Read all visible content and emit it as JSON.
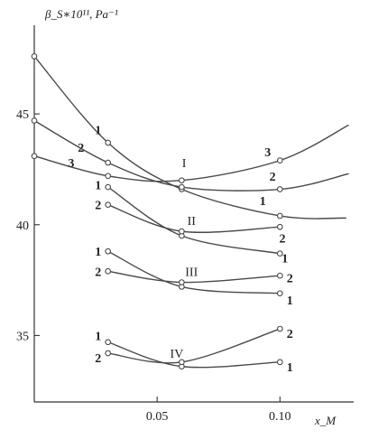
{
  "chart_data": {
    "type": "line",
    "title": "",
    "ylabel": "β_S∗10¹¹, Pa⁻¹",
    "xlabel": "x_M",
    "xlim": [
      0.0,
      0.13
    ],
    "ylim": [
      32.0,
      49.0
    ],
    "x_ticks": [
      {
        "value": 0.05,
        "label": "0.05"
      },
      {
        "value": 0.1,
        "label": "0.10"
      }
    ],
    "y_ticks": [
      {
        "value": 35,
        "label": "35"
      },
      {
        "value": 40,
        "label": "40"
      },
      {
        "value": 45,
        "label": "45"
      }
    ],
    "grid": false,
    "groups": [
      {
        "name": "I",
        "label_point": {
          "x": 0.061,
          "y": 42.8
        },
        "series": [
          {
            "name": "1",
            "points": [
              [
                0.0,
                47.6
              ],
              [
                0.03,
                43.7
              ],
              [
                0.06,
                41.6
              ],
              [
                0.1,
                40.4
              ]
            ],
            "curve_end": [
              0.127,
              40.3
            ],
            "label_point": {
              "x": 0.026,
              "y": 44.3
            }
          },
          {
            "name": "2",
            "points": [
              [
                0.0,
                44.7
              ],
              [
                0.03,
                42.8
              ],
              [
                0.06,
                41.7
              ],
              [
                0.1,
                41.6
              ]
            ],
            "curve_end": [
              0.128,
              42.3
            ],
            "label_point": {
              "x": 0.019,
              "y": 43.5
            }
          },
          {
            "name": "3",
            "points": [
              [
                0.0,
                43.1
              ],
              [
                0.03,
                42.2
              ],
              [
                0.06,
                42.0
              ],
              [
                0.1,
                42.9
              ]
            ],
            "curve_end": [
              0.128,
              44.5
            ],
            "label_point": {
              "x": 0.015,
              "y": 42.8
            }
          }
        ],
        "end_labels": [
          {
            "series": "1",
            "x": 0.093,
            "y": 41.1
          },
          {
            "series": "2",
            "x": 0.097,
            "y": 42.2
          },
          {
            "series": "3",
            "x": 0.095,
            "y": 43.3
          }
        ]
      },
      {
        "name": "II",
        "label_point": {
          "x": 0.064,
          "y": 40.2
        },
        "series": [
          {
            "name": "1",
            "points": [
              [
                0.03,
                41.7
              ],
              [
                0.06,
                39.5
              ],
              [
                0.1,
                38.7
              ]
            ],
            "label_point": {
              "x": 0.026,
              "y": 41.8
            }
          },
          {
            "name": "2",
            "points": [
              [
                0.03,
                40.9
              ],
              [
                0.06,
                39.7
              ],
              [
                0.1,
                39.9
              ]
            ],
            "label_point": {
              "x": 0.026,
              "y": 40.9
            }
          }
        ],
        "end_labels": [
          {
            "series": "2",
            "x": 0.101,
            "y": 39.4
          },
          {
            "series": "1",
            "x": 0.102,
            "y": 38.5
          }
        ]
      },
      {
        "name": "III",
        "label_point": {
          "x": 0.064,
          "y": 37.9
        },
        "series": [
          {
            "name": "1",
            "points": [
              [
                0.03,
                38.8
              ],
              [
                0.06,
                37.2
              ],
              [
                0.1,
                36.9
              ]
            ],
            "label_point": {
              "x": 0.026,
              "y": 38.8
            }
          },
          {
            "name": "2",
            "points": [
              [
                0.03,
                37.9
              ],
              [
                0.06,
                37.4
              ],
              [
                0.1,
                37.7
              ]
            ],
            "label_point": {
              "x": 0.026,
              "y": 37.9
            }
          }
        ],
        "end_labels": [
          {
            "series": "2",
            "x": 0.104,
            "y": 37.6
          },
          {
            "series": "1",
            "x": 0.104,
            "y": 36.6
          }
        ]
      },
      {
        "name": "IV",
        "label_point": {
          "x": 0.058,
          "y": 34.2
        },
        "series": [
          {
            "name": "1",
            "points": [
              [
                0.03,
                34.7
              ],
              [
                0.06,
                33.6
              ],
              [
                0.1,
                33.8
              ]
            ],
            "label_point": {
              "x": 0.026,
              "y": 35.0
            }
          },
          {
            "name": "2",
            "points": [
              [
                0.03,
                34.2
              ],
              [
                0.06,
                33.8
              ],
              [
                0.1,
                35.3
              ]
            ],
            "label_point": {
              "x": 0.026,
              "y": 34.0
            }
          }
        ],
        "end_labels": [
          {
            "series": "2",
            "x": 0.104,
            "y": 35.1
          },
          {
            "series": "1",
            "x": 0.104,
            "y": 33.6
          }
        ]
      }
    ]
  }
}
